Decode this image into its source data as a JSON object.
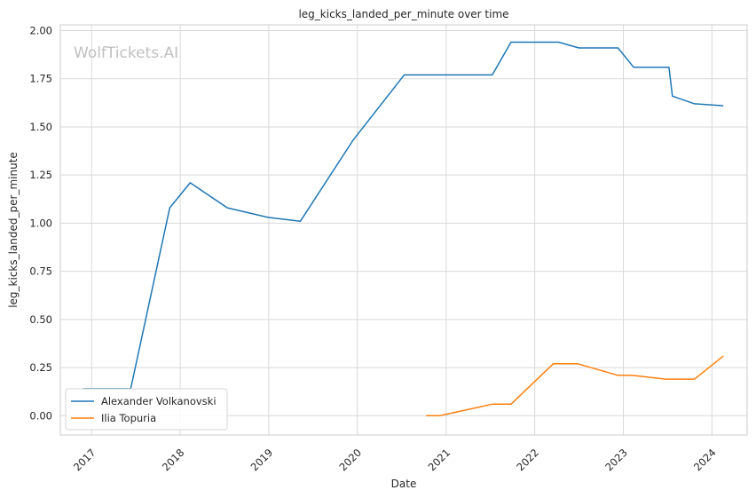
{
  "chart_data": {
    "type": "line",
    "title": "leg_kicks_landed_per_minute over time",
    "xlabel": "Date",
    "ylabel": "leg_kicks_landed_per_minute",
    "watermark": "WolfTickets.AI",
    "xlim": [
      "2016-08-25",
      "2024-05-25"
    ],
    "ylim": [
      -0.1,
      2.03
    ],
    "x_ticks": [
      "2017",
      "2018",
      "2019",
      "2020",
      "2021",
      "2022",
      "2023",
      "2024"
    ],
    "y_ticks": [
      "0.00",
      "0.25",
      "0.50",
      "0.75",
      "1.00",
      "1.25",
      "1.50",
      "1.75",
      "2.00"
    ],
    "grid": true,
    "legend_position": "lower-left",
    "series": [
      {
        "name": "Alexander Volkanovski",
        "color": "#1f77b4",
        "points": [
          {
            "x": "2016-11-26",
            "y": 0.14
          },
          {
            "x": "2017-06-11",
            "y": 0.14
          },
          {
            "x": "2017-11-19",
            "y": 1.08
          },
          {
            "x": "2018-02-11",
            "y": 1.21
          },
          {
            "x": "2018-07-14",
            "y": 1.08
          },
          {
            "x": "2018-12-29",
            "y": 1.03
          },
          {
            "x": "2019-05-11",
            "y": 1.01
          },
          {
            "x": "2019-12-14",
            "y": 1.43
          },
          {
            "x": "2020-07-12",
            "y": 1.77
          },
          {
            "x": "2021-07-10",
            "y": 1.77
          },
          {
            "x": "2021-09-25",
            "y": 1.94
          },
          {
            "x": "2022-04-09",
            "y": 1.94
          },
          {
            "x": "2022-07-02",
            "y": 1.91
          },
          {
            "x": "2022-12-10",
            "y": 1.91
          },
          {
            "x": "2023-02-12",
            "y": 1.81
          },
          {
            "x": "2023-07-08",
            "y": 1.81
          },
          {
            "x": "2023-07-22",
            "y": 1.66
          },
          {
            "x": "2023-10-21",
            "y": 1.62
          },
          {
            "x": "2024-02-17",
            "y": 1.61
          }
        ]
      },
      {
        "name": "Ilia Topuria",
        "color": "#ff7f0e",
        "points": [
          {
            "x": "2020-10-10",
            "y": 0.0
          },
          {
            "x": "2020-12-05",
            "y": 0.0
          },
          {
            "x": "2021-07-10",
            "y": 0.06
          },
          {
            "x": "2021-09-25",
            "y": 0.06
          },
          {
            "x": "2022-03-19",
            "y": 0.27
          },
          {
            "x": "2022-06-25",
            "y": 0.27
          },
          {
            "x": "2022-12-10",
            "y": 0.21
          },
          {
            "x": "2023-02-05",
            "y": 0.21
          },
          {
            "x": "2023-06-24",
            "y": 0.19
          },
          {
            "x": "2023-10-21",
            "y": 0.19
          },
          {
            "x": "2024-02-17",
            "y": 0.31
          }
        ]
      }
    ]
  }
}
